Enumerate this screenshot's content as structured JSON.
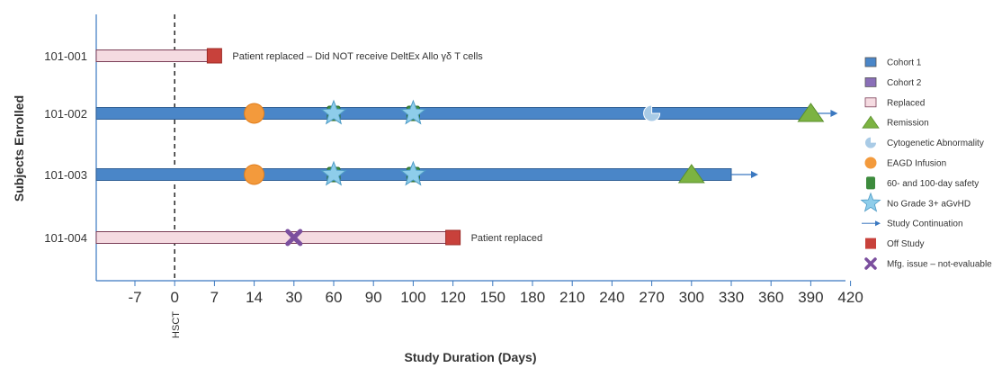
{
  "chart_data": {
    "type": "swimmer",
    "title": "",
    "xlabel": "Study Duration (Days)",
    "ylabel": "Subjects Enrolled",
    "x_ticks": [
      "-7",
      "0",
      "7",
      "14",
      "30",
      "60",
      "90",
      "100",
      "120",
      "150",
      "180",
      "210",
      "240",
      "270",
      "300",
      "330",
      "360",
      "390",
      "420"
    ],
    "reference_line": {
      "tick": "0",
      "label": "HSCT",
      "style": "dashed"
    },
    "legend_position": "right",
    "subjects": [
      {
        "id": "101-001",
        "category": "Replaced",
        "start": "0",
        "end": "7",
        "events": [
          {
            "type": "Off Study",
            "tick": "7"
          }
        ],
        "annotation": "Patient replaced – Did NOT receive DeltEx Allo γδ T cells"
      },
      {
        "id": "101-002",
        "category": "Cohort 1",
        "start": "0",
        "end": "390",
        "continues": true,
        "events": [
          {
            "type": "EAGD Infusion",
            "tick": "14"
          },
          {
            "type": "No Grade 3+ aGvHD",
            "tick": "60",
            "with": "60- and 100-day safety"
          },
          {
            "type": "No Grade 3+ aGvHD",
            "tick": "100",
            "with": "60- and 100-day safety"
          },
          {
            "type": "Cytogenetic Abnormality",
            "tick": "270"
          },
          {
            "type": "Remission",
            "tick": "390"
          }
        ],
        "annotation": ""
      },
      {
        "id": "101-003",
        "category": "Cohort 1",
        "start": "0",
        "end": "330",
        "continues": true,
        "events": [
          {
            "type": "EAGD Infusion",
            "tick": "14"
          },
          {
            "type": "No Grade 3+ aGvHD",
            "tick": "60",
            "with": "60- and 100-day safety"
          },
          {
            "type": "No Grade 3+ aGvHD",
            "tick": "100",
            "with": "60- and 100-day safety"
          },
          {
            "type": "Remission",
            "tick": "300"
          }
        ],
        "annotation": ""
      },
      {
        "id": "101-004",
        "category": "Replaced",
        "start": "0",
        "end": "120",
        "events": [
          {
            "type": "Mfg. issue – not-evaluable",
            "tick": "30"
          },
          {
            "type": "Off Study",
            "tick": "120"
          }
        ],
        "annotation": "Patient replaced"
      }
    ],
    "legend": [
      {
        "label": "Cohort 1",
        "symbol": "bar-blue",
        "color": "#4a86c8"
      },
      {
        "label": "Cohort 2",
        "symbol": "bar-purple",
        "color": "#8a6fb8"
      },
      {
        "label": "Replaced",
        "symbol": "bar-pink",
        "color": "#f5dbe1"
      },
      {
        "label": "Remission",
        "symbol": "triangle",
        "color": "#7cb342"
      },
      {
        "label": "Cytogenetic Abnormality",
        "symbol": "pac",
        "color": "#a9cbe6"
      },
      {
        "label": "EAGD Infusion",
        "symbol": "circle",
        "color": "#f39a3c"
      },
      {
        "label": "60- and 100-day safety",
        "symbol": "green-rect",
        "color": "#3d8b3d"
      },
      {
        "label": "No Grade 3+ aGvHD",
        "symbol": "star",
        "color": "#8ecdea"
      },
      {
        "label": "Study Continuation",
        "symbol": "arrow",
        "color": "#3a78c0"
      },
      {
        "label": "Off Study",
        "symbol": "square",
        "color": "#c8413b"
      },
      {
        "label": "Mfg. issue – not-evaluable",
        "symbol": "cross",
        "color": "#7b4f9e"
      }
    ]
  }
}
